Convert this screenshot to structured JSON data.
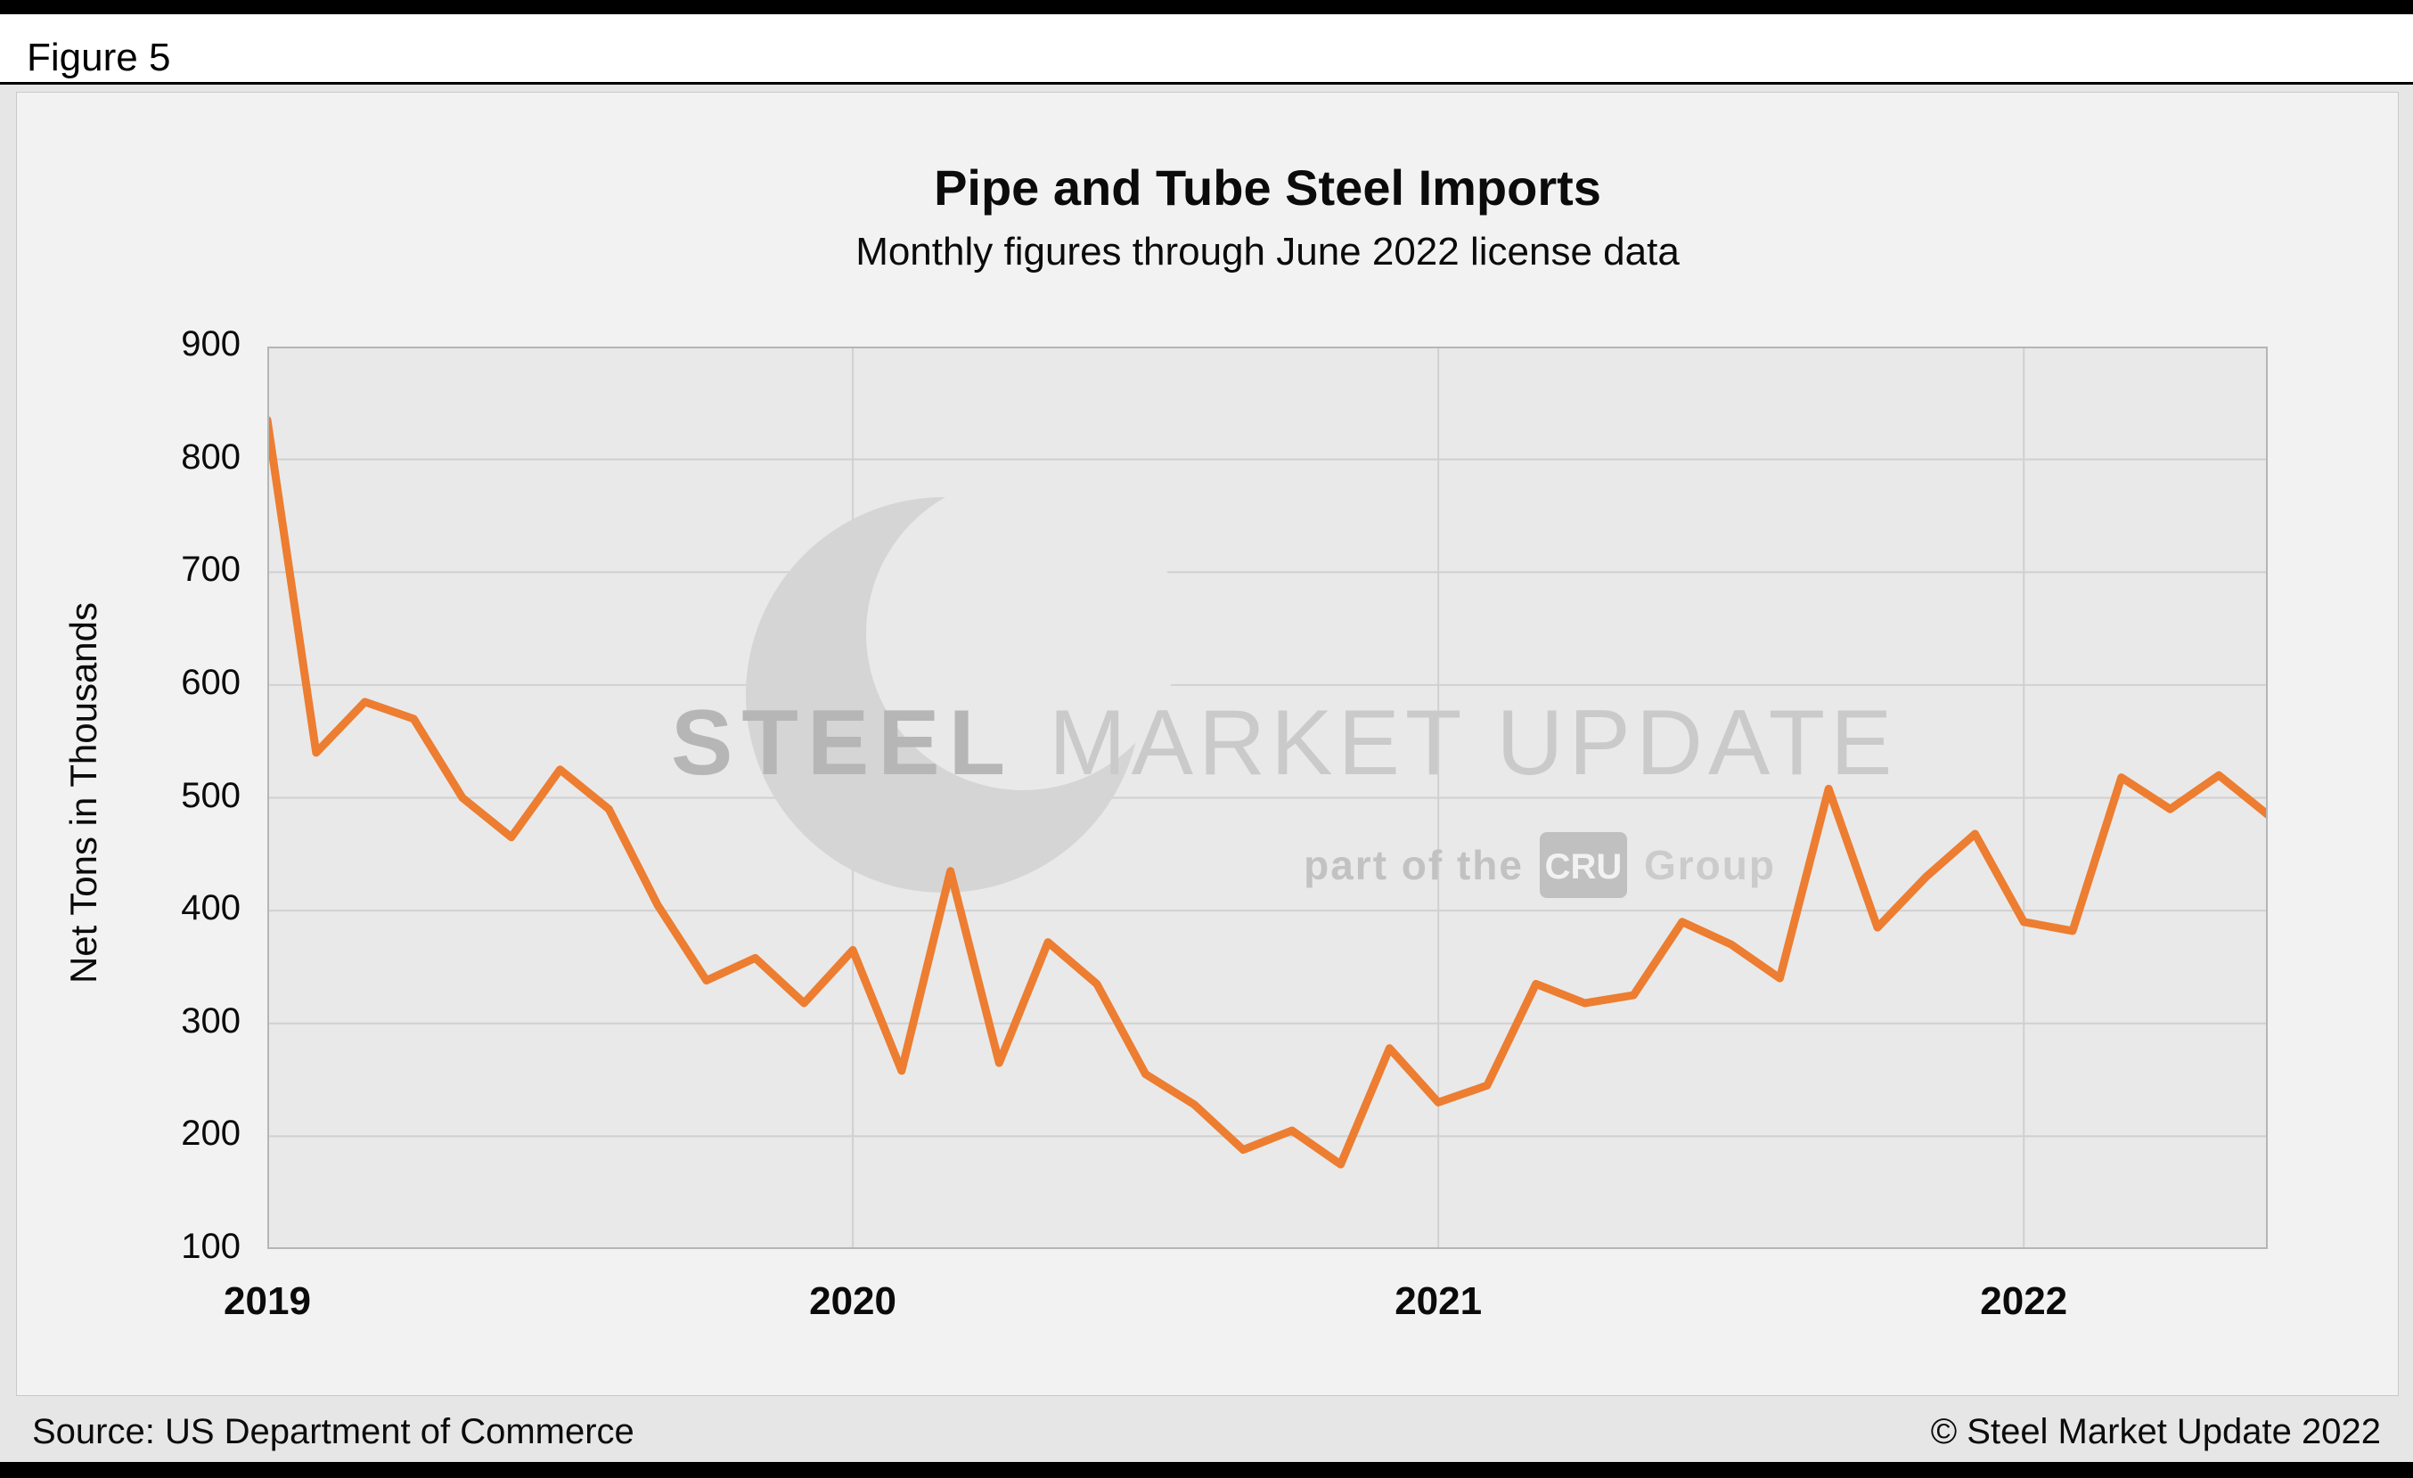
{
  "figure_label": "Figure 5",
  "chart_data": {
    "type": "line",
    "title": "Pipe and Tube Steel Imports",
    "subtitle": "Monthly figures through June 2022 license data",
    "ylabel": "Net Tons in Thousands",
    "ylim": [
      100,
      900
    ],
    "yticks": [
      100,
      200,
      300,
      400,
      500,
      600,
      700,
      800,
      900
    ],
    "grid": true,
    "legend": "none",
    "line_color": "#ED7D31",
    "x_tick_labels": [
      "2019",
      "2020",
      "2021",
      "2022"
    ],
    "x_tick_indices": [
      0,
      12,
      24,
      36
    ],
    "x_gridline_indices": [
      12,
      24,
      36
    ],
    "x": [
      "Jan 2019",
      "Feb 2019",
      "Mar 2019",
      "Apr 2019",
      "May 2019",
      "Jun 2019",
      "Jul 2019",
      "Aug 2019",
      "Sep 2019",
      "Oct 2019",
      "Nov 2019",
      "Dec 2019",
      "Jan 2020",
      "Feb 2020",
      "Mar 2020",
      "Apr 2020",
      "May 2020",
      "Jun 2020",
      "Jul 2020",
      "Aug 2020",
      "Sep 2020",
      "Oct 2020",
      "Nov 2020",
      "Dec 2020",
      "Jan 2021",
      "Feb 2021",
      "Mar 2021",
      "Apr 2021",
      "May 2021",
      "Jun 2021",
      "Jul 2021",
      "Aug 2021",
      "Sep 2021",
      "Oct 2021",
      "Nov 2021",
      "Dec 2021",
      "Jan 2022",
      "Feb 2022",
      "Mar 2022",
      "Apr 2022",
      "May 2022",
      "Jun 2022"
    ],
    "values": [
      835,
      540,
      585,
      570,
      500,
      465,
      525,
      490,
      405,
      338,
      358,
      318,
      365,
      258,
      435,
      265,
      372,
      335,
      255,
      228,
      188,
      205,
      175,
      278,
      230,
      245,
      335,
      318,
      325,
      390,
      370,
      340,
      508,
      385,
      430,
      468,
      390,
      382,
      518,
      490,
      520,
      485
    ]
  },
  "watermark": {
    "brand_bold": "STEEL",
    "brand_light": "MARKET UPDATE",
    "tagline_prefix": "part of the",
    "tagline_box": "CRU",
    "tagline_suffix": "Group"
  },
  "footer": {
    "source": "Source: US Department of Commerce",
    "copyright": "© Steel Market Update 2022"
  }
}
